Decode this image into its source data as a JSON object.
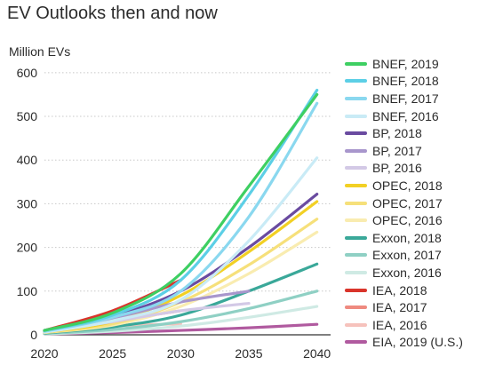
{
  "chart_data": {
    "type": "line",
    "title": "EV Outlooks then and now",
    "xlabel": "",
    "ylabel": "Million EVs",
    "xlim": [
      2020,
      2041
    ],
    "ylim": [
      0,
      620
    ],
    "xticks": [
      2020,
      2025,
      2030,
      2035,
      2040
    ],
    "yticks": [
      0,
      100,
      200,
      300,
      400,
      500,
      600
    ],
    "grid": "horizontal",
    "legend": "right",
    "series": [
      {
        "name": "BNEF, 2019",
        "color": "#3ecf62",
        "points": [
          [
            2020,
            10
          ],
          [
            2025,
            50
          ],
          [
            2030,
            140
          ],
          [
            2035,
            340
          ],
          [
            2040,
            550
          ]
        ]
      },
      {
        "name": "BNEF, 2018",
        "color": "#5ccfe6",
        "points": [
          [
            2020,
            10
          ],
          [
            2025,
            45
          ],
          [
            2030,
            125
          ],
          [
            2035,
            320
          ],
          [
            2040,
            560
          ]
        ]
      },
      {
        "name": "BNEF, 2017",
        "color": "#8ad8ef",
        "points": [
          [
            2020,
            8
          ],
          [
            2025,
            40
          ],
          [
            2030,
            100
          ],
          [
            2035,
            270
          ],
          [
            2040,
            530
          ]
        ]
      },
      {
        "name": "BNEF, 2016",
        "color": "#c9ebf6",
        "points": [
          [
            2020,
            6
          ],
          [
            2025,
            32
          ],
          [
            2030,
            80
          ],
          [
            2035,
            215
          ],
          [
            2040,
            405
          ]
        ]
      },
      {
        "name": "BP, 2018",
        "color": "#6a4ba0",
        "points": [
          [
            2020,
            8
          ],
          [
            2025,
            42
          ],
          [
            2030,
            100
          ],
          [
            2035,
            200
          ],
          [
            2040,
            322
          ]
        ]
      },
      {
        "name": "BP, 2017",
        "color": "#a896cc",
        "points": [
          [
            2020,
            7
          ],
          [
            2025,
            38
          ],
          [
            2030,
            75
          ],
          [
            2035,
            100
          ]
        ]
      },
      {
        "name": "BP, 2016",
        "color": "#d3c9e6",
        "points": [
          [
            2020,
            6
          ],
          [
            2025,
            30
          ],
          [
            2030,
            55
          ],
          [
            2035,
            72
          ]
        ]
      },
      {
        "name": "OPEC, 2018",
        "color": "#f2d024",
        "points": [
          [
            2020,
            6
          ],
          [
            2025,
            30
          ],
          [
            2030,
            90
          ],
          [
            2035,
            190
          ],
          [
            2040,
            305
          ]
        ]
      },
      {
        "name": "OPEC, 2017",
        "color": "#f6e07a",
        "points": [
          [
            2020,
            5
          ],
          [
            2025,
            25
          ],
          [
            2030,
            75
          ],
          [
            2035,
            160
          ],
          [
            2040,
            265
          ]
        ]
      },
      {
        "name": "OPEC, 2016",
        "color": "#f9ecb0",
        "points": [
          [
            2020,
            5
          ],
          [
            2025,
            22
          ],
          [
            2030,
            65
          ],
          [
            2035,
            140
          ],
          [
            2040,
            235
          ]
        ]
      },
      {
        "name": "Exxon, 2018",
        "color": "#3aa899",
        "points": [
          [
            2020,
            4
          ],
          [
            2025,
            18
          ],
          [
            2030,
            45
          ],
          [
            2035,
            100
          ],
          [
            2040,
            162
          ]
        ]
      },
      {
        "name": "Exxon, 2017",
        "color": "#8fd0c4",
        "points": [
          [
            2020,
            3
          ],
          [
            2025,
            12
          ],
          [
            2030,
            30
          ],
          [
            2035,
            60
          ],
          [
            2040,
            100
          ]
        ]
      },
      {
        "name": "Exxon, 2016",
        "color": "#cfeae4",
        "points": [
          [
            2020,
            2
          ],
          [
            2025,
            8
          ],
          [
            2030,
            20
          ],
          [
            2035,
            40
          ],
          [
            2040,
            65
          ]
        ]
      },
      {
        "name": "IEA, 2018",
        "color": "#d9342b",
        "points": [
          [
            2020,
            10
          ],
          [
            2025,
            55
          ],
          [
            2030,
            125
          ]
        ]
      },
      {
        "name": "IEA, 2017",
        "color": "#ef8a80",
        "points": [
          [
            2020,
            8
          ],
          [
            2025,
            32
          ],
          [
            2030,
            55
          ]
        ]
      },
      {
        "name": "IEA, 2016",
        "color": "#f6c2bc",
        "points": [
          [
            2020,
            6
          ],
          [
            2025,
            20
          ],
          [
            2030,
            25
          ]
        ]
      },
      {
        "name": "EIA, 2019 (U.S.)",
        "color": "#b05a9f",
        "points": [
          [
            2020,
            2
          ],
          [
            2025,
            5
          ],
          [
            2030,
            10
          ],
          [
            2035,
            16
          ],
          [
            2040,
            24
          ]
        ]
      }
    ]
  }
}
